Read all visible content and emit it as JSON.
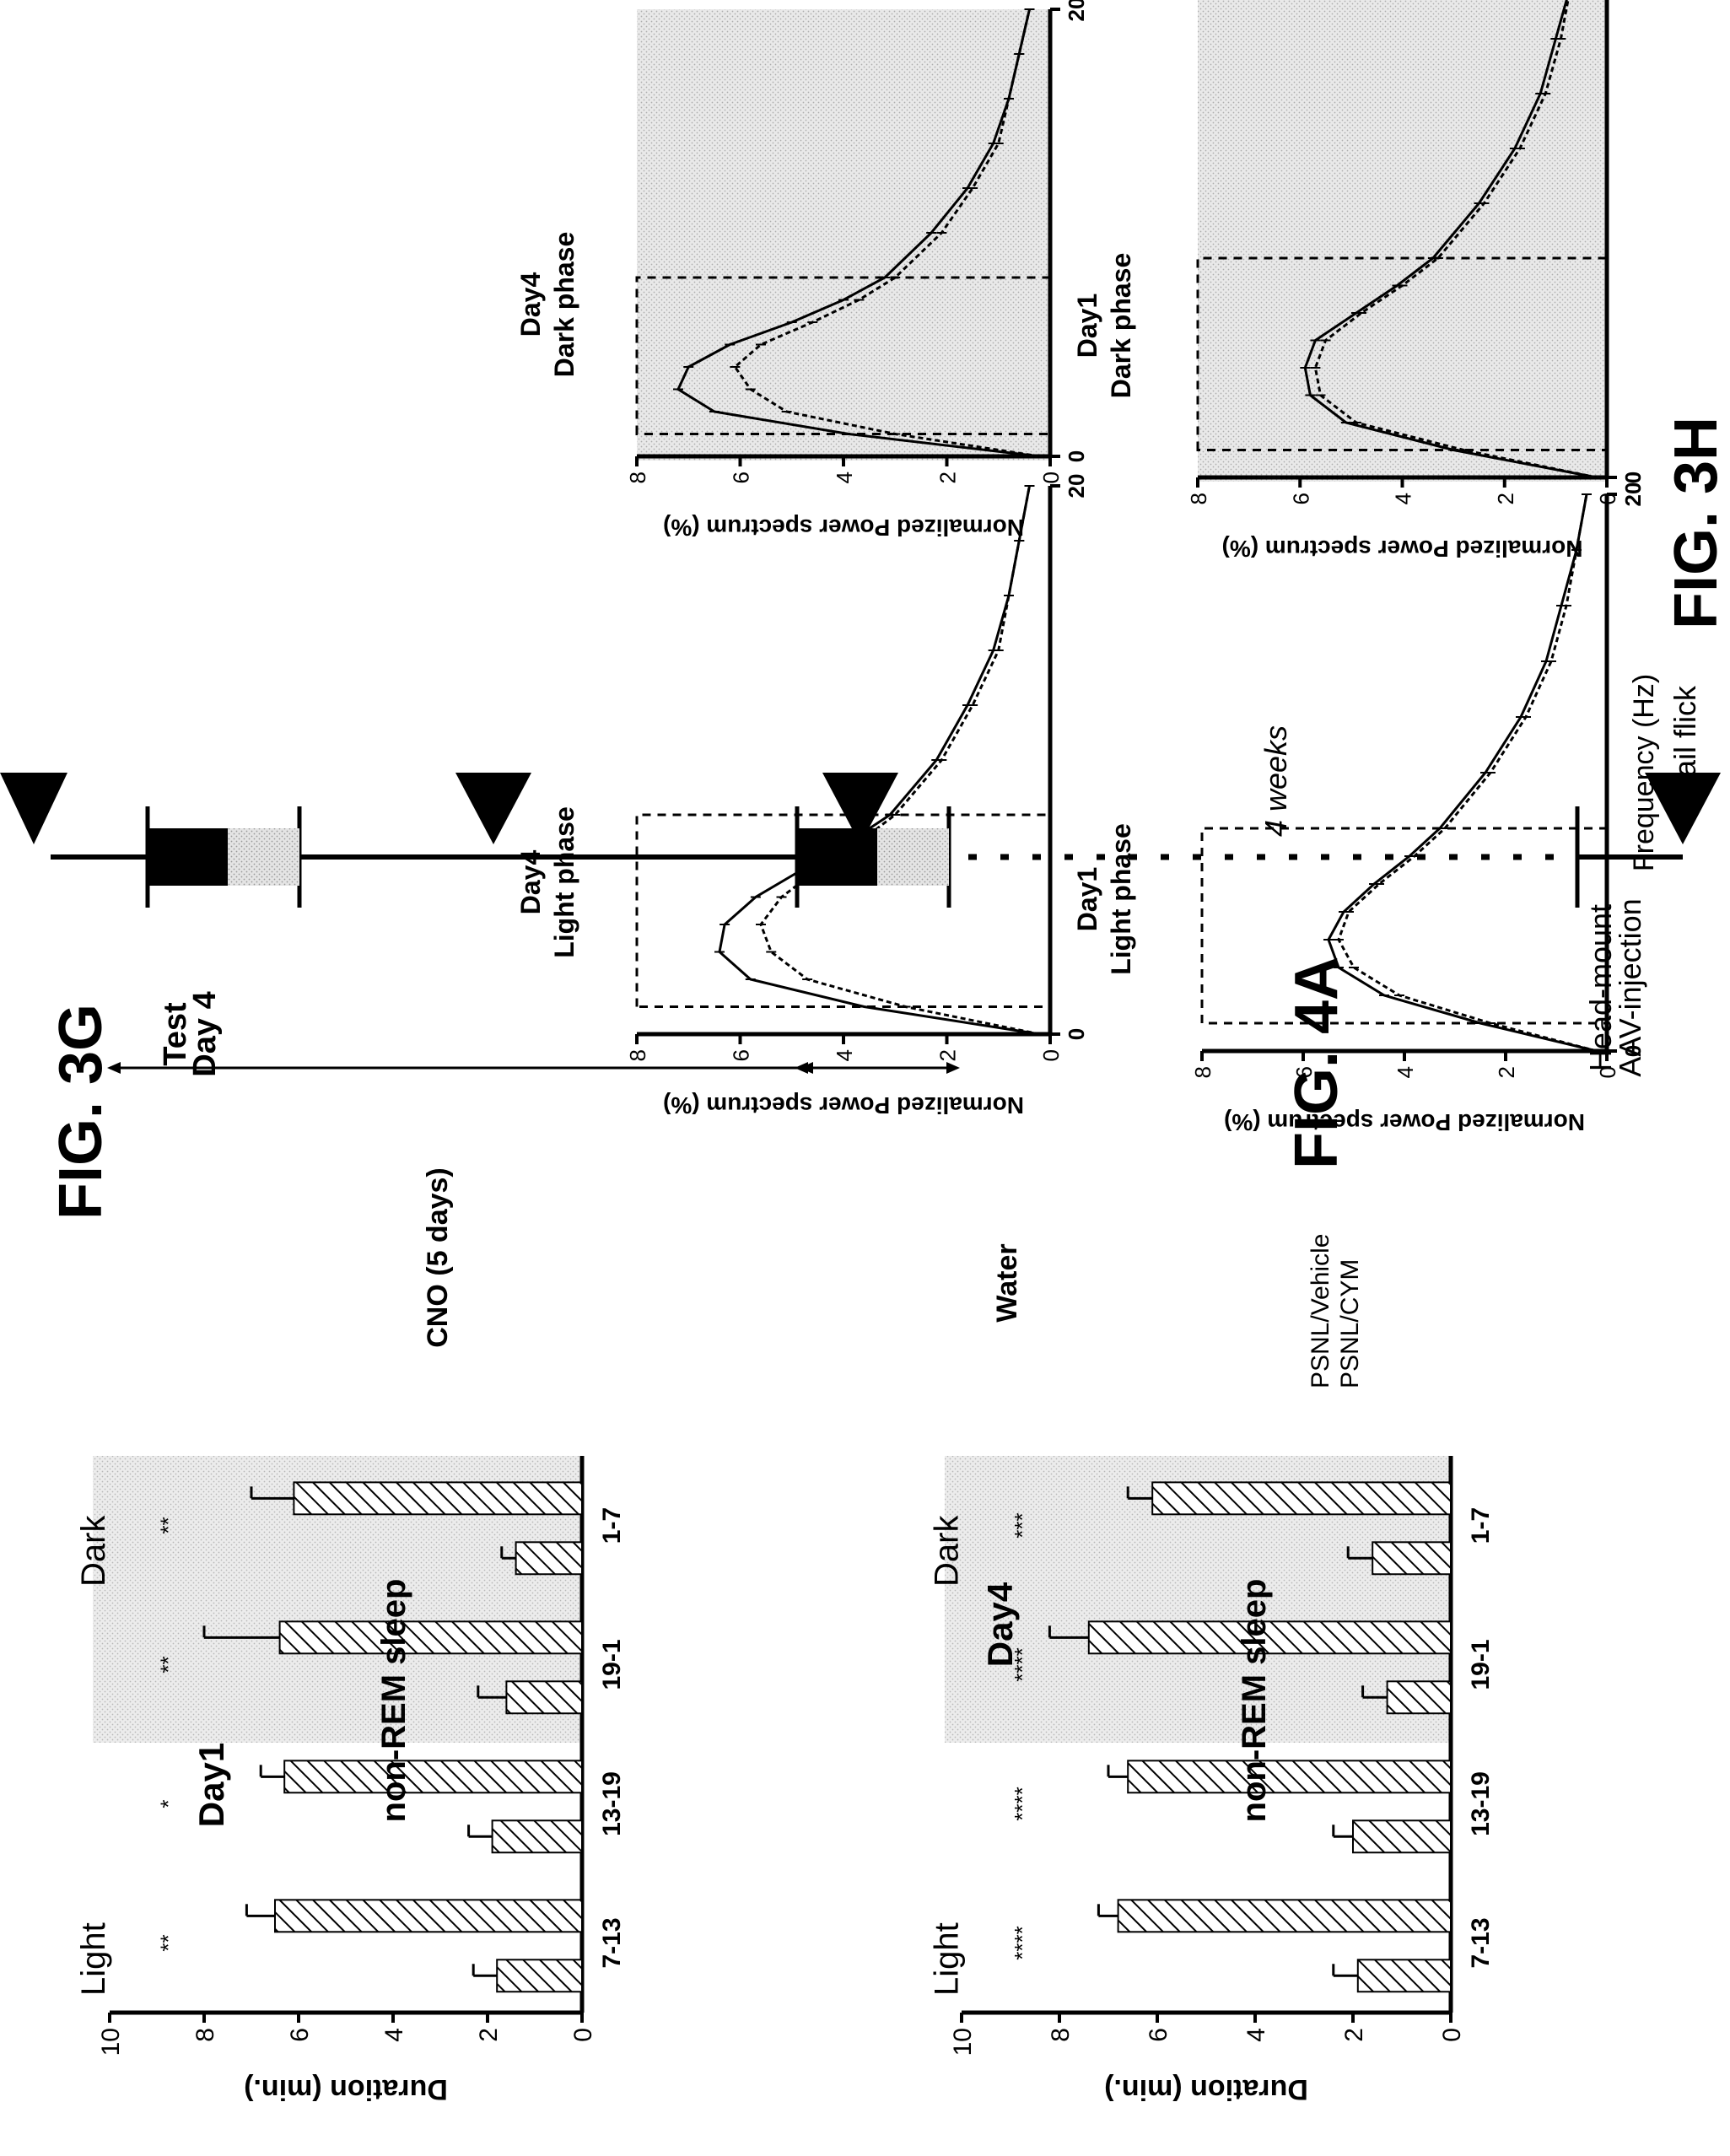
{
  "figure_labels": {
    "fig3g": "FIG. 3G",
    "fig3h": "FIG. 3H",
    "fig4a": "FIG. 4A"
  },
  "legend": {
    "vehicle": "PSNL/Vehicle",
    "cym": "PSNL/CYM"
  },
  "colors": {
    "dark_phase_shading": "#d9d9d9",
    "bar_fill": "#ffffff",
    "bar_hatch": "#000000"
  },
  "chart_data": [
    {
      "id": "g-day1",
      "type": "bar",
      "day_label": "Day1",
      "title": "non-REM sleep",
      "ylabel": "Duration (min.)",
      "ylim": [
        0,
        10
      ],
      "yticks": [
        0,
        2,
        4,
        6,
        8,
        10
      ],
      "categories": [
        "7-13",
        "13-19",
        "19-1",
        "1-7"
      ],
      "phase_labels": {
        "light": "Light",
        "dark": "Dark"
      },
      "series": [
        {
          "name": "PSNL/Vehicle",
          "values": [
            1.8,
            1.9,
            1.6,
            1.4
          ],
          "errors": [
            0.5,
            0.5,
            0.6,
            0.3
          ]
        },
        {
          "name": "PSNL/CYM",
          "values": [
            6.5,
            6.3,
            6.4,
            6.1
          ],
          "errors": [
            0.6,
            0.5,
            1.6,
            0.9
          ]
        }
      ],
      "significance": [
        "**",
        "*",
        "**",
        "**"
      ]
    },
    {
      "id": "g-day4",
      "type": "bar",
      "day_label": "Day4",
      "title": "non-REM sleep",
      "ylabel": "Duration (min.)",
      "ylim": [
        0,
        10
      ],
      "yticks": [
        0,
        2,
        4,
        6,
        8,
        10
      ],
      "categories": [
        "7-13",
        "13-19",
        "19-1",
        "1-7"
      ],
      "phase_labels": {
        "light": "Light",
        "dark": "Dark"
      },
      "series": [
        {
          "name": "PSNL/Vehicle",
          "values": [
            1.9,
            2.0,
            1.3,
            1.6
          ],
          "errors": [
            0.5,
            0.4,
            0.5,
            0.5
          ]
        },
        {
          "name": "PSNL/CYM",
          "values": [
            6.8,
            6.6,
            7.4,
            6.1
          ],
          "errors": [
            0.4,
            0.4,
            0.8,
            0.5
          ]
        }
      ],
      "significance": [
        "****",
        "****",
        "****",
        "***"
      ]
    },
    {
      "id": "h-day1-light",
      "type": "line",
      "title_line1": "Day1",
      "title_line2": "Light phase",
      "xlabel": "Frequency (Hz)",
      "ylabel": "Normalized Power spectrum (%)",
      "xlim": [
        0,
        20
      ],
      "ylim": [
        0,
        8
      ],
      "xticks": [
        0,
        20
      ],
      "yticks": [
        0,
        2,
        4,
        6,
        8
      ],
      "dark": false,
      "box_hz": [
        1,
        8
      ],
      "series": [
        {
          "x": [
            0,
            1,
            2,
            3,
            4,
            5,
            6,
            7,
            8,
            10,
            12,
            14,
            16,
            18,
            20
          ],
          "y": [
            0.2,
            2.5,
            4.4,
            5.3,
            5.5,
            5.2,
            4.6,
            3.9,
            3.3,
            2.4,
            1.7,
            1.2,
            0.9,
            0.6,
            0.4
          ]
        },
        {
          "x": [
            0,
            1,
            2,
            3,
            4,
            5,
            6,
            7,
            8,
            10,
            12,
            14,
            16,
            18,
            20
          ],
          "y": [
            0.2,
            2.3,
            4.1,
            5.0,
            5.3,
            5.1,
            4.5,
            3.8,
            3.2,
            2.3,
            1.6,
            1.1,
            0.8,
            0.6,
            0.4
          ]
        }
      ]
    },
    {
      "id": "h-day1-dark",
      "type": "line",
      "title_line1": "Day1",
      "title_line2": "Dark phase",
      "xlabel": "",
      "ylabel": "Normalized Power spectrum (%)",
      "xlim": [
        0,
        20
      ],
      "ylim": [
        0,
        8
      ],
      "xticks": [
        0,
        20
      ],
      "yticks": [
        0,
        2,
        4,
        6,
        8
      ],
      "dark": true,
      "box_hz": [
        1,
        8
      ],
      "series": [
        {
          "x": [
            0,
            1,
            2,
            3,
            4,
            5,
            6,
            7,
            8,
            10,
            12,
            14,
            16,
            18,
            20
          ],
          "y": [
            0.2,
            3.0,
            5.1,
            5.8,
            5.9,
            5.7,
            4.9,
            4.1,
            3.4,
            2.5,
            1.8,
            1.3,
            1.0,
            0.7,
            0.5
          ]
        },
        {
          "x": [
            0,
            1,
            2,
            3,
            4,
            5,
            6,
            7,
            8,
            10,
            12,
            14,
            16,
            18,
            20
          ],
          "y": [
            0.2,
            2.8,
            4.9,
            5.6,
            5.7,
            5.5,
            4.8,
            4.0,
            3.3,
            2.4,
            1.7,
            1.2,
            0.9,
            0.7,
            0.5
          ]
        }
      ]
    },
    {
      "id": "h-day4-light",
      "type": "line",
      "title_line1": "Day4",
      "title_line2": "Light phase",
      "xlabel": "",
      "ylabel": "Normalized Power spectrum (%)",
      "xlim": [
        0,
        20
      ],
      "ylim": [
        0,
        8
      ],
      "xticks": [
        0,
        20
      ],
      "yticks": [
        0,
        2,
        4,
        6,
        8
      ],
      "dark": false,
      "box_hz": [
        1,
        8
      ],
      "series": [
        {
          "x": [
            0,
            1,
            2,
            3,
            4,
            5,
            6,
            7,
            8,
            10,
            12,
            14,
            16,
            18,
            20
          ],
          "y": [
            0.2,
            3.6,
            5.8,
            6.4,
            6.3,
            5.7,
            4.8,
            3.9,
            3.1,
            2.2,
            1.6,
            1.1,
            0.8,
            0.6,
            0.4
          ]
        },
        {
          "x": [
            0,
            1,
            2,
            3,
            4,
            5,
            6,
            7,
            8,
            10,
            12,
            14,
            16,
            18,
            20
          ],
          "y": [
            0.2,
            2.8,
            4.7,
            5.4,
            5.6,
            5.2,
            4.5,
            3.7,
            3.0,
            2.1,
            1.5,
            1.0,
            0.8,
            0.6,
            0.4
          ]
        }
      ]
    },
    {
      "id": "h-day4-dark",
      "type": "line",
      "title_line1": "Day4",
      "title_line2": "Dark phase",
      "xlabel": "",
      "ylabel": "Normalized Power spectrum (%)",
      "xlim": [
        0,
        20
      ],
      "ylim": [
        0,
        8
      ],
      "xticks": [
        0,
        20
      ],
      "yticks": [
        0,
        2,
        4,
        6,
        8
      ],
      "dark": true,
      "box_hz": [
        1,
        8
      ],
      "series": [
        {
          "x": [
            0,
            1,
            2,
            3,
            4,
            5,
            6,
            7,
            8,
            10,
            12,
            14,
            16,
            18,
            20
          ],
          "y": [
            0.2,
            3.9,
            6.5,
            7.2,
            7.0,
            6.2,
            5.0,
            4.0,
            3.2,
            2.3,
            1.6,
            1.1,
            0.8,
            0.6,
            0.4
          ]
        },
        {
          "x": [
            0,
            1,
            2,
            3,
            4,
            5,
            6,
            7,
            8,
            10,
            12,
            14,
            16,
            18,
            20
          ],
          "y": [
            0.2,
            3.0,
            5.1,
            5.8,
            6.1,
            5.6,
            4.6,
            3.7,
            3.0,
            2.1,
            1.5,
            1.0,
            0.8,
            0.6,
            0.4
          ]
        }
      ]
    }
  ],
  "timeline": {
    "tail_flick": "Tail flick",
    "head_mount_line1": "Head-mount",
    "head_mount_line2": "AAV-injection",
    "gap_label": "4 weeks",
    "water_label": "Water",
    "cno_label": "CNO (5 days)",
    "test_line1": "Test",
    "test_line2": "Day 4"
  }
}
